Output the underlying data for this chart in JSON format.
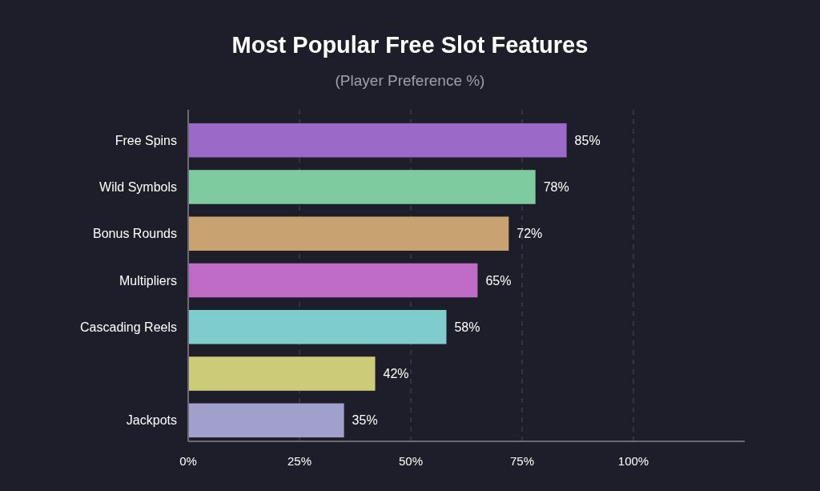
{
  "chart_data": {
    "type": "bar",
    "orientation": "horizontal",
    "title": "Most Popular Free Slot Features",
    "subtitle": "(Player Preference %)",
    "categories": [
      "Free Spins",
      "Wild Symbols",
      "Bonus Rounds",
      "Multipliers",
      "Cascading Reels",
      null,
      "Jackpots"
    ],
    "values": [
      85,
      78,
      72,
      65,
      58,
      42,
      35
    ],
    "colors": [
      "#9b69c7",
      "#7fcba0",
      "#c8a270",
      "#bf6cc7",
      "#7ecccc",
      "#cccb78",
      "#a19fcb"
    ],
    "xlim": [
      0,
      125
    ],
    "xticks": [
      {
        "value": 0,
        "label": "0%"
      },
      {
        "value": 25,
        "label": "25%"
      },
      {
        "value": 50,
        "label": "50%"
      },
      {
        "value": 75,
        "label": "75%"
      },
      {
        "value": 100,
        "label": "100%"
      }
    ],
    "value_labels": [
      "85%",
      "78%",
      "72%",
      "65%",
      "58%",
      "42%",
      "35%"
    ],
    "grid": "x"
  }
}
